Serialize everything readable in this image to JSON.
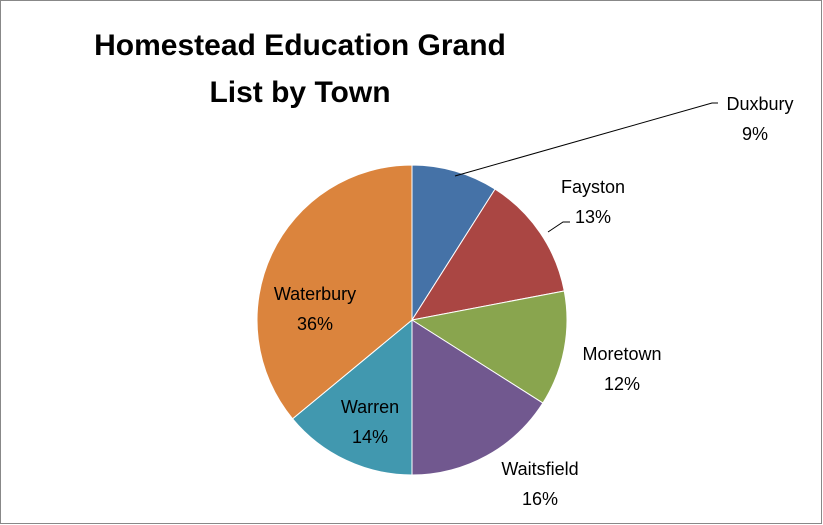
{
  "chart_data": {
    "type": "pie",
    "title": "Homestead Education Grand List by Town",
    "categories": [
      "Duxbury",
      "Fayston",
      "Moretown",
      "Waitsfield",
      "Warren",
      "Waterbury"
    ],
    "values": [
      9,
      13,
      12,
      16,
      14,
      36
    ],
    "value_labels": [
      "9%",
      "13%",
      "12%",
      "16%",
      "14%",
      "36%"
    ],
    "colors": [
      "#4572a7",
      "#aa4643",
      "#89a54e",
      "#71588f",
      "#4198af",
      "#db843d"
    ]
  }
}
